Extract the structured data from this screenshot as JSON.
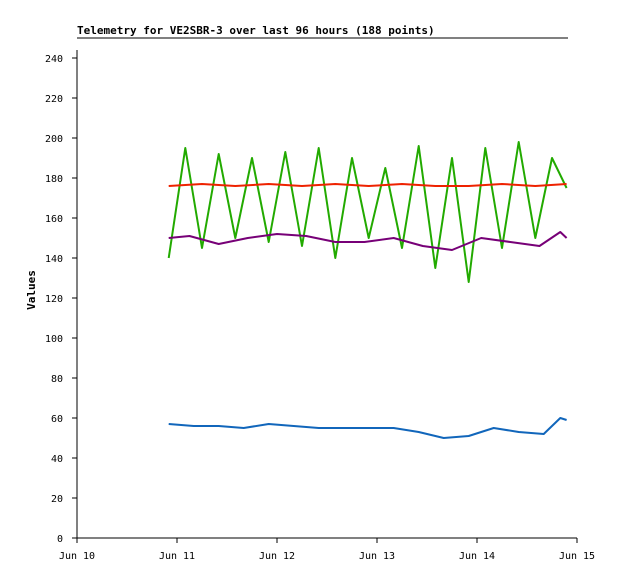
{
  "chart_data": {
    "type": "line",
    "title": "Telemetry for VE2SBR-3 over last 96 hours (188 points)",
    "xlabel": "",
    "ylabel": "Values",
    "xlim": [
      "2024-06-10T00:00",
      "2024-06-15T00:00"
    ],
    "ylim": [
      0,
      250
    ],
    "x_ticks": [
      "Jun 10",
      "Jun 11",
      "Jun 12",
      "Jun 13",
      "Jun 14",
      "Jun 15"
    ],
    "y_ticks": [
      0,
      20,
      40,
      60,
      80,
      100,
      120,
      140,
      160,
      180,
      200,
      220,
      240
    ],
    "grid": false,
    "legend": "none",
    "series": [
      {
        "color": "#22aa00",
        "x": [
          "2024-06-10T22:00",
          "2024-06-11T02:00",
          "2024-06-11T06:00",
          "2024-06-11T10:00",
          "2024-06-11T14:00",
          "2024-06-11T18:00",
          "2024-06-11T22:00",
          "2024-06-12T02:00",
          "2024-06-12T06:00",
          "2024-06-12T10:00",
          "2024-06-12T14:00",
          "2024-06-12T18:00",
          "2024-06-12T22:00",
          "2024-06-13T02:00",
          "2024-06-13T06:00",
          "2024-06-13T10:00",
          "2024-06-13T14:00",
          "2024-06-13T18:00",
          "2024-06-13T22:00",
          "2024-06-14T02:00",
          "2024-06-14T06:00",
          "2024-06-14T10:00",
          "2024-06-14T14:00",
          "2024-06-14T18:00",
          "2024-06-14T21:30"
        ],
        "values": [
          140,
          195,
          145,
          192,
          150,
          190,
          148,
          193,
          146,
          195,
          140,
          190,
          150,
          185,
          145,
          196,
          135,
          190,
          128,
          195,
          145,
          198,
          150,
          190,
          175
        ]
      },
      {
        "color": "#ee2200",
        "x": [
          "2024-06-10T22:00",
          "2024-06-11T06:00",
          "2024-06-11T14:00",
          "2024-06-11T22:00",
          "2024-06-12T06:00",
          "2024-06-12T14:00",
          "2024-06-12T22:00",
          "2024-06-13T06:00",
          "2024-06-13T14:00",
          "2024-06-13T22:00",
          "2024-06-14T06:00",
          "2024-06-14T14:00",
          "2024-06-14T21:30"
        ],
        "values": [
          176,
          177,
          176,
          177,
          176,
          177,
          176,
          177,
          176,
          176,
          177,
          176,
          177
        ]
      },
      {
        "color": "#770077",
        "x": [
          "2024-06-10T22:00",
          "2024-06-11T03:00",
          "2024-06-11T10:00",
          "2024-06-11T17:00",
          "2024-06-12T00:00",
          "2024-06-12T07:00",
          "2024-06-12T14:00",
          "2024-06-12T21:00",
          "2024-06-13T04:00",
          "2024-06-13T11:00",
          "2024-06-13T18:00",
          "2024-06-14T01:00",
          "2024-06-14T08:00",
          "2024-06-14T15:00",
          "2024-06-14T20:00",
          "2024-06-14T21:30"
        ],
        "values": [
          150,
          151,
          147,
          150,
          152,
          151,
          148,
          148,
          150,
          146,
          144,
          150,
          148,
          146,
          153,
          150
        ]
      },
      {
        "color": "#1166bb",
        "x": [
          "2024-06-10T22:00",
          "2024-06-11T04:00",
          "2024-06-11T10:00",
          "2024-06-11T16:00",
          "2024-06-11T22:00",
          "2024-06-12T04:00",
          "2024-06-12T10:00",
          "2024-06-12T16:00",
          "2024-06-12T22:00",
          "2024-06-13T04:00",
          "2024-06-13T10:00",
          "2024-06-13T16:00",
          "2024-06-13T22:00",
          "2024-06-14T04:00",
          "2024-06-14T10:00",
          "2024-06-14T16:00",
          "2024-06-14T20:00",
          "2024-06-14T21:30"
        ],
        "values": [
          57,
          56,
          56,
          55,
          57,
          56,
          55,
          55,
          55,
          55,
          53,
          50,
          51,
          55,
          53,
          52,
          60,
          59
        ]
      }
    ]
  }
}
